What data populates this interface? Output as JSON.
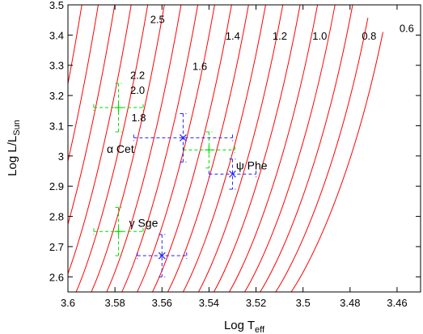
{
  "chart_data": {
    "type": "line",
    "title": "",
    "xlabel": {
      "main": "Log T",
      "sub": "eff"
    },
    "ylabel": {
      "main": "Log L/L",
      "sub": "Sun"
    },
    "xlim": [
      3.6,
      3.45
    ],
    "ylim": [
      2.55,
      3.5
    ],
    "x_ticks": [
      {
        "value": 3.6,
        "label": "3.6"
      },
      {
        "value": 3.58,
        "label": "3.58"
      },
      {
        "value": 3.56,
        "label": "3.56"
      },
      {
        "value": 3.54,
        "label": "3.54"
      },
      {
        "value": 3.52,
        "label": "3.52"
      },
      {
        "value": 3.5,
        "label": "3.5"
      },
      {
        "value": 3.48,
        "label": "3.48"
      },
      {
        "value": 3.46,
        "label": "3.46"
      }
    ],
    "y_ticks": [
      {
        "value": 2.6,
        "label": "2.6"
      },
      {
        "value": 2.7,
        "label": "2.7"
      },
      {
        "value": 2.8,
        "label": "2.8"
      },
      {
        "value": 2.9,
        "label": "2.9"
      },
      {
        "value": 3.0,
        "label": "3"
      },
      {
        "value": 3.1,
        "label": "3.1"
      },
      {
        "value": 3.2,
        "label": "3.2"
      },
      {
        "value": 3.3,
        "label": "3.3"
      },
      {
        "value": 3.4,
        "label": "3.4"
      },
      {
        "value": 3.5,
        "label": "3.5"
      }
    ],
    "track_color": "#ff0000",
    "track_x_spacing": 0.0064,
    "track_rise": 0.047,
    "track_count": 28,
    "track_top_x": 3.466,
    "track_top_y": 3.41,
    "track_base_x": 3.51,
    "track_base_y": 2.55,
    "curve_labels": [
      {
        "text": "2.5",
        "x": 3.565,
        "y": 3.44
      },
      {
        "text": "2.2",
        "x": 3.5735,
        "y": 3.255
      },
      {
        "text": "2.0",
        "x": 3.5735,
        "y": 3.205
      },
      {
        "text": "1.8",
        "x": 3.573,
        "y": 3.115
      },
      {
        "text": "1.6",
        "x": 3.547,
        "y": 3.285
      },
      {
        "text": "1.4",
        "x": 3.533,
        "y": 3.385
      },
      {
        "text": "1.2",
        "x": 3.513,
        "y": 3.385
      },
      {
        "text": "1.0",
        "x": 3.496,
        "y": 3.385
      },
      {
        "text": "0.8",
        "x": 3.475,
        "y": 3.385
      },
      {
        "text": "0.6",
        "x": 3.459,
        "y": 3.41
      }
    ],
    "series": [
      {
        "marker": "plus",
        "color": "#00dd00",
        "points": [
          {
            "x": 3.5785,
            "y": 3.16,
            "xerr": 0.0105,
            "yerr": 0.08
          },
          {
            "x": 3.54,
            "y": 3.02,
            "xerr": 0.011,
            "yerr": 0.06
          },
          {
            "x": 3.5785,
            "y": 2.75,
            "xerr": 0.0105,
            "yerr": 0.08
          }
        ]
      },
      {
        "marker": "x",
        "color": "#2222ff",
        "points": [
          {
            "x": 3.551,
            "y": 3.06,
            "xerr": 0.021,
            "yerr": 0.08
          },
          {
            "x": 3.53,
            "y": 2.94,
            "xerr": 0.01,
            "yerr": 0.05
          },
          {
            "x": 3.56,
            "y": 2.67,
            "xerr": 0.0105,
            "yerr": 0.07
          }
        ]
      }
    ],
    "star_labels": [
      {
        "symbol": "α",
        "name": "Cet",
        "x": 3.5835,
        "y": 3.01
      },
      {
        "symbol": "ψ",
        "name": "Phe",
        "x": 3.5285,
        "y": 2.955
      },
      {
        "symbol": "γ",
        "name": "Sge",
        "x": 3.574,
        "y": 2.765
      }
    ]
  }
}
